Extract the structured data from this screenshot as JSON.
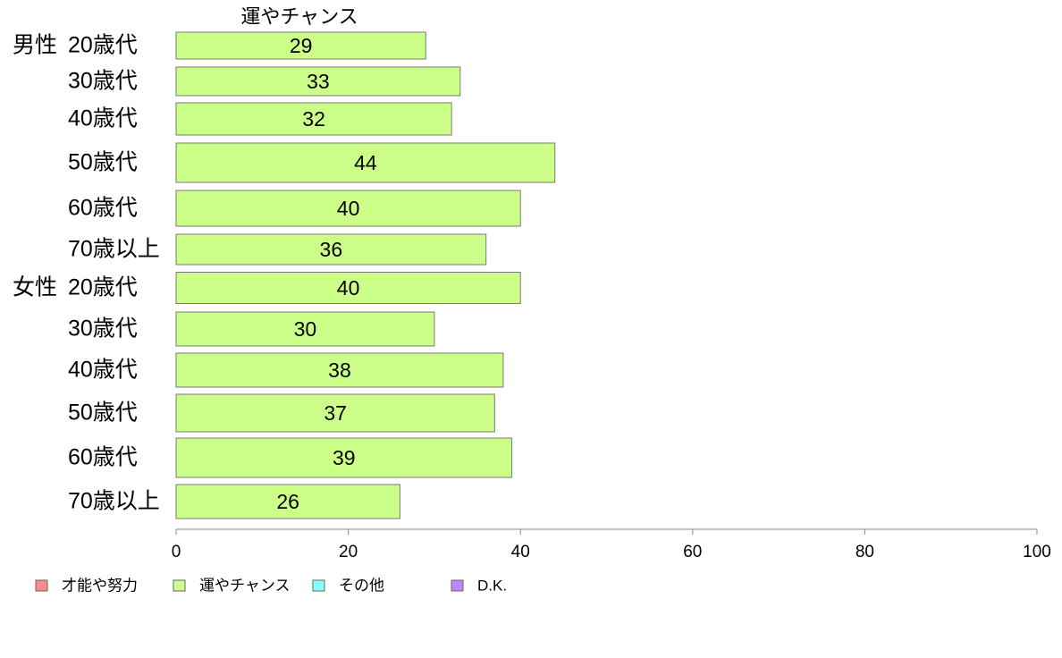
{
  "chart_data": {
    "type": "bar",
    "orientation": "horizontal",
    "title": "運やチャンス",
    "groups": [
      {
        "label": "男性",
        "categories": [
          "20歳代",
          "30歳代",
          "40歳代",
          "50歳代",
          "60歳代",
          "70歳以上"
        ],
        "values": [
          29,
          33,
          32,
          44,
          40,
          36
        ]
      },
      {
        "label": "女性",
        "categories": [
          "20歳代",
          "30歳代",
          "40歳代",
          "50歳代",
          "60歳代",
          "70歳以上"
        ],
        "values": [
          40,
          30,
          38,
          37,
          39,
          26
        ]
      }
    ],
    "xlim": [
      0,
      100
    ],
    "xticks": [
      0,
      20,
      40,
      60,
      80,
      100
    ],
    "grid": false,
    "legend": {
      "placement": "bottom-left",
      "entries": [
        {
          "name": "才能や努力",
          "color": "#ff8888"
        },
        {
          "name": "運やチャンス",
          "color": "#ccff88"
        },
        {
          "name": "その他",
          "color": "#88ffff"
        },
        {
          "name": "D.K.",
          "color": "#bb88ff"
        }
      ]
    },
    "bar_color": "#ccff88"
  }
}
